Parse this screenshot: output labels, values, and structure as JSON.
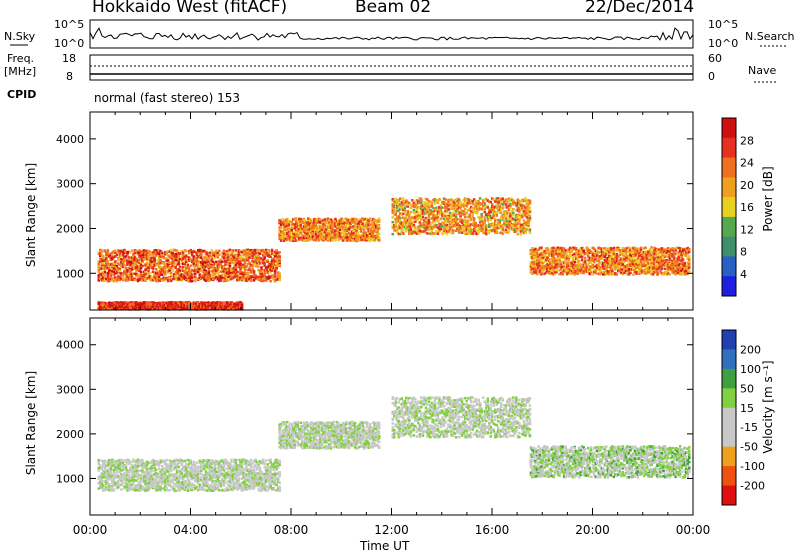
{
  "header": {
    "station": "Hokkaido West (fitACF)",
    "beam": "Beam 02",
    "date": "22/Dec/2014"
  },
  "noise_panel": {
    "left_label": "N.Sky",
    "right_label": "N.Search",
    "left_ticks": [
      "10^5",
      "10^0"
    ],
    "right_ticks": [
      "10^5",
      "10^0"
    ]
  },
  "freq_panel": {
    "left_label_line1": "Freq.",
    "left_label_line2": "[MHz]",
    "left_ticks": [
      "18",
      "8"
    ],
    "right_label": "Nave",
    "right_ticks": [
      "60",
      "0"
    ]
  },
  "cpid": {
    "label": "CPID",
    "text": "normal (fast stereo) 153"
  },
  "x_axis": {
    "label": "Time UT",
    "ticks": [
      "00:00",
      "04:00",
      "08:00",
      "12:00",
      "16:00",
      "20:00",
      "00:00"
    ]
  },
  "power_colorbar": {
    "label": "Power [dB]",
    "ticks": [
      "28",
      "24",
      "20",
      "16",
      "12",
      "8",
      "4"
    ]
  },
  "velocity_colorbar": {
    "label": "Velocity [m s⁻¹]",
    "ticks": [
      "200",
      "100",
      "50",
      "15",
      "-15",
      "-50",
      "-100",
      "-200"
    ]
  },
  "chart_data": [
    {
      "type": "heatmap",
      "title": "",
      "xlabel": "Time UT",
      "ylabel": "Slant Range [km]",
      "xlim": [
        0,
        24
      ],
      "ylim": [
        180,
        4600
      ],
      "yticks": [
        1000,
        2000,
        3000,
        4000
      ],
      "colorbar": {
        "label": "Power [dB]",
        "range": [
          0,
          32
        ],
        "ticks": [
          4,
          8,
          12,
          16,
          20,
          24,
          28
        ]
      },
      "scatter_bands": [
        {
          "time_start": 0.3,
          "time_end": 7.5,
          "range_center": 1200,
          "range_width": 350,
          "level": 24
        },
        {
          "time_start": 7.5,
          "time_end": 11.5,
          "range_center": 2000,
          "range_width": 250,
          "level": 22
        },
        {
          "time_start": 12.0,
          "time_end": 17.5,
          "range_center": 2300,
          "range_width": 400,
          "level": 20
        },
        {
          "time_start": 17.5,
          "time_end": 23.8,
          "range_center": 1300,
          "range_width": 300,
          "level": 22
        },
        {
          "time_start": 0.3,
          "time_end": 6.0,
          "range_center": 300,
          "range_width": 80,
          "level": 28
        }
      ]
    },
    {
      "type": "heatmap",
      "title": "",
      "xlabel": "Time UT",
      "ylabel": "Slant Range [km]",
      "xlim": [
        0,
        24
      ],
      "ylim": [
        180,
        4600
      ],
      "yticks": [
        1000,
        2000,
        3000,
        4000
      ],
      "colorbar": {
        "label": "Velocity [m s⁻¹]",
        "range": [
          -250,
          250
        ],
        "ticks": [
          -200,
          -100,
          -50,
          -15,
          15,
          50,
          100,
          200
        ]
      },
      "scatter_bands": [
        {
          "time_start": 0.3,
          "time_end": 7.5,
          "range_center": 1100,
          "range_width": 350,
          "level": 0
        },
        {
          "time_start": 7.5,
          "time_end": 11.5,
          "range_center": 2000,
          "range_width": 300,
          "level": 0
        },
        {
          "time_start": 12.0,
          "time_end": 17.5,
          "range_center": 2400,
          "range_width": 450,
          "level": 0
        },
        {
          "time_start": 17.5,
          "time_end": 23.8,
          "range_center": 1400,
          "range_width": 350,
          "level": 25
        }
      ]
    }
  ]
}
